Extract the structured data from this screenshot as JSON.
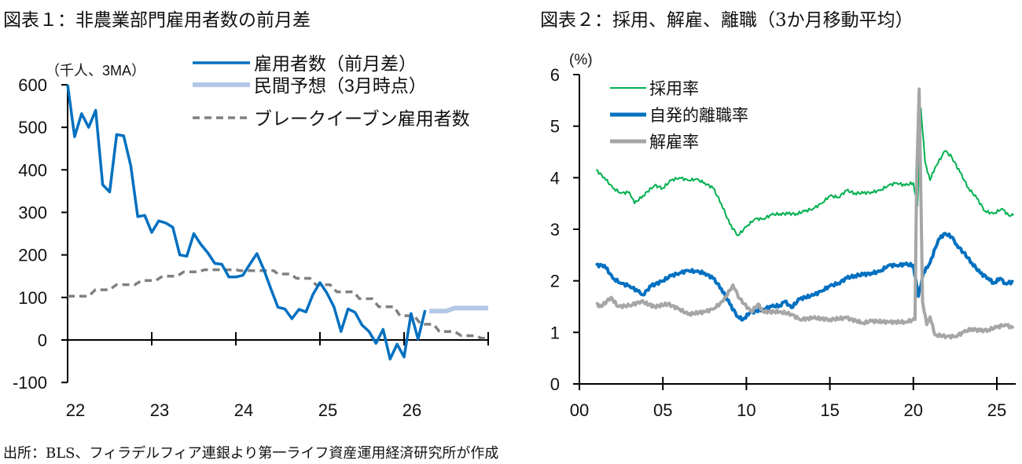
{
  "titles": {
    "left": "図表１：非農業部門雇用者数の前月差",
    "right": "図表２：採用、解雇、離職（3か月移動平均）"
  },
  "footer": "出所：BLS、フィラデルフィア連銀より第一ライフ資産運用経済研究所が作成",
  "chart_data": [
    {
      "type": "line",
      "unit_label": "（千人、3MA）",
      "ylim": [
        -100,
        600
      ],
      "yticks": [
        "600",
        "500",
        "400",
        "300",
        "200",
        "100",
        "0",
        "-100"
      ],
      "xlim": [
        2022,
        2027
      ],
      "xticks": [
        "22",
        "23",
        "24",
        "25",
        "26"
      ],
      "grid": false,
      "legend_position": "top-right",
      "series": [
        {
          "name": "雇用者数（前月差）",
          "color": "#0070C0",
          "style": "solid",
          "x_start": "2022-01",
          "x_step": "month",
          "values": [
            600,
            478,
            532,
            500,
            540,
            365,
            348,
            483,
            480,
            410,
            290,
            293,
            253,
            280,
            275,
            265,
            200,
            197,
            250,
            225,
            205,
            180,
            178,
            148,
            148,
            152,
            178,
            203,
            165,
            120,
            77,
            73,
            50,
            72,
            66,
            107,
            135,
            110,
            78,
            20,
            73,
            65,
            35,
            20,
            -8,
            25,
            -45,
            -10,
            -40,
            62,
            2,
            70
          ]
        },
        {
          "name": "民間予想（3月時点）",
          "color": "#B4C7E7",
          "style": "solid",
          "points": [
            [
              2026.3,
              68
            ],
            [
              2026.5,
              68
            ],
            [
              2026.6,
              75
            ],
            [
              2027.0,
              75
            ]
          ]
        },
        {
          "name": "ブレークイーブン雇用者数",
          "color": "#808080",
          "style": "dashed",
          "points": [
            [
              2022.0,
              103
            ],
            [
              2022.25,
              103
            ],
            [
              2022.33,
              118
            ],
            [
              2022.5,
              118
            ],
            [
              2022.58,
              130
            ],
            [
              2022.8,
              130
            ],
            [
              2022.88,
              140
            ],
            [
              2023.05,
              140
            ],
            [
              2023.13,
              150
            ],
            [
              2023.3,
              150
            ],
            [
              2023.38,
              160
            ],
            [
              2023.55,
              160
            ],
            [
              2023.63,
              165
            ],
            [
              2024.0,
              165
            ],
            [
              2024.05,
              163
            ],
            [
              2024.45,
              163
            ],
            [
              2024.5,
              155
            ],
            [
              2024.65,
              155
            ],
            [
              2024.72,
              145
            ],
            [
              2024.88,
              145
            ],
            [
              2024.95,
              130
            ],
            [
              2025.12,
              130
            ],
            [
              2025.2,
              113
            ],
            [
              2025.4,
              113
            ],
            [
              2025.47,
              97
            ],
            [
              2025.62,
              97
            ],
            [
              2025.7,
              78
            ],
            [
              2025.88,
              78
            ],
            [
              2025.95,
              57
            ],
            [
              2026.12,
              57
            ],
            [
              2026.2,
              37
            ],
            [
              2026.35,
              37
            ],
            [
              2026.42,
              20
            ],
            [
              2026.6,
              20
            ],
            [
              2026.68,
              10
            ],
            [
              2026.85,
              10
            ],
            [
              2026.92,
              4
            ],
            [
              2027.0,
              4
            ]
          ]
        }
      ]
    },
    {
      "type": "line",
      "unit_label": "(%)",
      "ylim": [
        0,
        6
      ],
      "yticks": [
        "6",
        "5",
        "4",
        "3",
        "2",
        "1",
        "0"
      ],
      "xlim": [
        2000,
        2026
      ],
      "xticks": [
        "00",
        "05",
        "10",
        "15",
        "20",
        "25"
      ],
      "grid": false,
      "legend_position": "top-left",
      "series": [
        {
          "name": "採用率",
          "color": "#00B050",
          "points": [
            [
              2001.0,
              4.15
            ],
            [
              2001.5,
              4.0
            ],
            [
              2002.0,
              3.8
            ],
            [
              2002.5,
              3.7
            ],
            [
              2003.0,
              3.72
            ],
            [
              2003.3,
              3.5
            ],
            [
              2003.8,
              3.65
            ],
            [
              2004.5,
              3.85
            ],
            [
              2005.0,
              3.8
            ],
            [
              2005.5,
              3.95
            ],
            [
              2006.0,
              4.0
            ],
            [
              2006.5,
              3.95
            ],
            [
              2007.0,
              3.97
            ],
            [
              2007.5,
              3.9
            ],
            [
              2008.0,
              3.8
            ],
            [
              2008.5,
              3.5
            ],
            [
              2009.0,
              3.1
            ],
            [
              2009.5,
              2.88
            ],
            [
              2010.0,
              3.05
            ],
            [
              2010.5,
              3.2
            ],
            [
              2011.0,
              3.2
            ],
            [
              2011.5,
              3.28
            ],
            [
              2012.0,
              3.3
            ],
            [
              2012.5,
              3.3
            ],
            [
              2013.0,
              3.3
            ],
            [
              2013.5,
              3.35
            ],
            [
              2014.0,
              3.4
            ],
            [
              2014.5,
              3.5
            ],
            [
              2015.0,
              3.65
            ],
            [
              2015.5,
              3.62
            ],
            [
              2016.0,
              3.75
            ],
            [
              2016.5,
              3.7
            ],
            [
              2017.0,
              3.7
            ],
            [
              2017.5,
              3.72
            ],
            [
              2018.0,
              3.75
            ],
            [
              2018.5,
              3.85
            ],
            [
              2019.0,
              3.9
            ],
            [
              2019.5,
              3.85
            ],
            [
              2020.0,
              3.9
            ],
            [
              2020.25,
              3.45
            ],
            [
              2020.45,
              5.35
            ],
            [
              2020.7,
              4.3
            ],
            [
              2021.0,
              3.95
            ],
            [
              2021.3,
              4.2
            ],
            [
              2021.9,
              4.52
            ],
            [
              2022.3,
              4.4
            ],
            [
              2022.8,
              4.1
            ],
            [
              2023.3,
              3.8
            ],
            [
              2023.8,
              3.6
            ],
            [
              2024.3,
              3.35
            ],
            [
              2024.8,
              3.3
            ],
            [
              2025.3,
              3.4
            ],
            [
              2025.7,
              3.27
            ],
            [
              2026.0,
              3.27
            ]
          ]
        },
        {
          "name": "自発的離職率",
          "color": "#0070C0",
          "points": [
            [
              2001.0,
              2.3
            ],
            [
              2001.5,
              2.3
            ],
            [
              2002.0,
              2.05
            ],
            [
              2002.5,
              1.95
            ],
            [
              2003.0,
              1.9
            ],
            [
              2003.5,
              1.8
            ],
            [
              2003.8,
              1.73
            ],
            [
              2004.3,
              1.9
            ],
            [
              2005.0,
              2.0
            ],
            [
              2005.5,
              2.1
            ],
            [
              2006.0,
              2.15
            ],
            [
              2006.5,
              2.2
            ],
            [
              2007.0,
              2.18
            ],
            [
              2007.5,
              2.15
            ],
            [
              2008.0,
              2.05
            ],
            [
              2008.5,
              1.85
            ],
            [
              2009.0,
              1.55
            ],
            [
              2009.5,
              1.3
            ],
            [
              2009.8,
              1.25
            ],
            [
              2010.2,
              1.38
            ],
            [
              2011.0,
              1.45
            ],
            [
              2011.5,
              1.5
            ],
            [
              2012.0,
              1.52
            ],
            [
              2012.3,
              1.6
            ],
            [
              2012.7,
              1.48
            ],
            [
              2013.2,
              1.65
            ],
            [
              2014.0,
              1.72
            ],
            [
              2014.5,
              1.8
            ],
            [
              2015.0,
              1.9
            ],
            [
              2015.5,
              1.95
            ],
            [
              2016.0,
              2.05
            ],
            [
              2016.5,
              2.1
            ],
            [
              2017.0,
              2.12
            ],
            [
              2017.5,
              2.15
            ],
            [
              2018.0,
              2.18
            ],
            [
              2018.5,
              2.3
            ],
            [
              2019.0,
              2.3
            ],
            [
              2019.5,
              2.32
            ],
            [
              2020.0,
              2.3
            ],
            [
              2020.3,
              1.7
            ],
            [
              2020.6,
              2.15
            ],
            [
              2021.0,
              2.35
            ],
            [
              2021.5,
              2.8
            ],
            [
              2021.9,
              2.92
            ],
            [
              2022.3,
              2.85
            ],
            [
              2022.6,
              2.7
            ],
            [
              2023.0,
              2.55
            ],
            [
              2023.5,
              2.35
            ],
            [
              2024.0,
              2.15
            ],
            [
              2024.5,
              2.05
            ],
            [
              2024.8,
              1.95
            ],
            [
              2025.2,
              2.05
            ],
            [
              2025.5,
              1.95
            ],
            [
              2026.0,
              1.98
            ]
          ]
        },
        {
          "name": "解雇率",
          "color": "#A6A6A6",
          "points": [
            [
              2001.0,
              1.55
            ],
            [
              2001.3,
              1.5
            ],
            [
              2001.9,
              1.68
            ],
            [
              2002.3,
              1.5
            ],
            [
              2003.0,
              1.52
            ],
            [
              2003.7,
              1.6
            ],
            [
              2004.5,
              1.5
            ],
            [
              2005.3,
              1.55
            ],
            [
              2006.0,
              1.45
            ],
            [
              2006.5,
              1.35
            ],
            [
              2007.5,
              1.4
            ],
            [
              2008.0,
              1.45
            ],
            [
              2008.6,
              1.6
            ],
            [
              2009.2,
              1.92
            ],
            [
              2009.6,
              1.65
            ],
            [
              2010.3,
              1.4
            ],
            [
              2010.7,
              1.55
            ],
            [
              2011.0,
              1.4
            ],
            [
              2012.0,
              1.4
            ],
            [
              2012.7,
              1.35
            ],
            [
              2013.2,
              1.25
            ],
            [
              2014.0,
              1.28
            ],
            [
              2015.0,
              1.25
            ],
            [
              2016.0,
              1.28
            ],
            [
              2017.0,
              1.18
            ],
            [
              2017.5,
              1.22
            ],
            [
              2018.5,
              1.2
            ],
            [
              2019.5,
              1.2
            ],
            [
              2020.1,
              1.25
            ],
            [
              2020.2,
              4.0
            ],
            [
              2020.35,
              5.72
            ],
            [
              2020.55,
              1.6
            ],
            [
              2020.8,
              1.15
            ],
            [
              2021.0,
              1.3
            ],
            [
              2021.3,
              0.95
            ],
            [
              2022.0,
              0.92
            ],
            [
              2022.5,
              0.92
            ],
            [
              2023.0,
              1.0
            ],
            [
              2023.5,
              1.07
            ],
            [
              2024.0,
              1.03
            ],
            [
              2024.5,
              1.05
            ],
            [
              2025.0,
              1.1
            ],
            [
              2025.5,
              1.15
            ],
            [
              2026.0,
              1.08
            ]
          ]
        }
      ]
    }
  ]
}
